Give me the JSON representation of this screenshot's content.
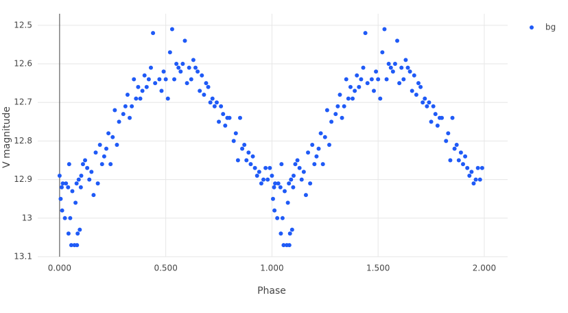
{
  "chart_data": {
    "type": "scatter",
    "x_label": "Phase",
    "y_label": "V magnitude",
    "xlim": [
      -0.103,
      2.11
    ],
    "ylim": [
      12.47,
      13.1
    ],
    "y_reversed": true,
    "grid": true,
    "legend": "top-right",
    "xticks": [
      {
        "value": 0,
        "label": "0.000"
      },
      {
        "value": 0.5,
        "label": "0.500"
      },
      {
        "value": 1,
        "label": "1.000"
      },
      {
        "value": 1.5,
        "label": "1.500"
      },
      {
        "value": 2,
        "label": "2.000"
      }
    ],
    "yticks": [
      12.5,
      12.6,
      12.7,
      12.8,
      12.9,
      13,
      13.1
    ],
    "series": [
      {
        "name": "bg",
        "color": "#1f5af6",
        "x": [
          0,
          0.005,
          0.01,
          0.015,
          0.012,
          0.025,
          0.03,
          0.04,
          0.042,
          0.045,
          0.05,
          0.055,
          0.06,
          0.07,
          0.075,
          0.08,
          0.082,
          0.085,
          0.09,
          0.095,
          0.1,
          0.102,
          0.11,
          0.12,
          0.13,
          0.14,
          0.15,
          0.16,
          0.17,
          0.18,
          0.19,
          0.2,
          0.21,
          0.22,
          0.23,
          0.24,
          0.25,
          0.26,
          0.27,
          0.28,
          0.3,
          0.31,
          0.32,
          0.33,
          0.34,
          0.35,
          0.36,
          0.37,
          0.38,
          0.39,
          0.4,
          0.41,
          0.42,
          0.43,
          0.44,
          0.45,
          0.47,
          0.48,
          0.49,
          0.5,
          0.51,
          0.52,
          0.53,
          0.54,
          0.55,
          0.56,
          0.57,
          0.58,
          0.59,
          0.6,
          0.61,
          0.62,
          0.63,
          0.64,
          0.65,
          0.66,
          0.67,
          0.68,
          0.69,
          0.7,
          0.71,
          0.72,
          0.73,
          0.74,
          0.75,
          0.76,
          0.77,
          0.78,
          0.79,
          0.8,
          0.82,
          0.83,
          0.84,
          0.85,
          0.86,
          0.87,
          0.88,
          0.89,
          0.9,
          0.91,
          0.92,
          0.93,
          0.94,
          0.95,
          0.96,
          0.97,
          0.98,
          0.99,
          1,
          1.005,
          1.01,
          1.015,
          1.012,
          1.025,
          1.03,
          1.04,
          1.042,
          1.045,
          1.05,
          1.055,
          1.06,
          1.07,
          1.075,
          1.08,
          1.082,
          1.085,
          1.09,
          1.095,
          1.1,
          1.102,
          1.11,
          1.12,
          1.13,
          1.14,
          1.15,
          1.16,
          1.17,
          1.18,
          1.19,
          1.2,
          1.21,
          1.22,
          1.23,
          1.24,
          1.25,
          1.26,
          1.27,
          1.28,
          1.3,
          1.31,
          1.32,
          1.33,
          1.34,
          1.35,
          1.36,
          1.37,
          1.38,
          1.39,
          1.4,
          1.41,
          1.42,
          1.43,
          1.44,
          1.45,
          1.47,
          1.48,
          1.49,
          1.5,
          1.51,
          1.52,
          1.53,
          1.54,
          1.55,
          1.56,
          1.57,
          1.58,
          1.59,
          1.6,
          1.61,
          1.62,
          1.63,
          1.64,
          1.65,
          1.66,
          1.67,
          1.68,
          1.69,
          1.7,
          1.71,
          1.72,
          1.73,
          1.74,
          1.75,
          1.76,
          1.77,
          1.78,
          1.79,
          1.8,
          1.82,
          1.83,
          1.84,
          1.85,
          1.86,
          1.87,
          1.88,
          1.89,
          1.9,
          1.91,
          1.92,
          1.93,
          1.94,
          1.95,
          1.96,
          1.97,
          1.98,
          1.99
        ],
        "values": [
          12.89,
          12.95,
          12.92,
          12.91,
          12.98,
          13.0,
          12.91,
          12.92,
          13.04,
          12.86,
          13.0,
          13.07,
          12.93,
          13.07,
          12.96,
          12.91,
          13.07,
          13.04,
          12.9,
          13.03,
          12.92,
          12.89,
          12.86,
          12.85,
          12.87,
          12.9,
          12.88,
          12.94,
          12.83,
          12.91,
          12.81,
          12.86,
          12.84,
          12.82,
          12.78,
          12.86,
          12.79,
          12.72,
          12.81,
          12.75,
          12.73,
          12.71,
          12.68,
          12.74,
          12.71,
          12.64,
          12.69,
          12.66,
          12.69,
          12.67,
          12.63,
          12.66,
          12.64,
          12.61,
          12.52,
          12.65,
          12.64,
          12.67,
          12.62,
          12.64,
          12.69,
          12.57,
          12.51,
          12.64,
          12.6,
          12.61,
          12.62,
          12.6,
          12.54,
          12.65,
          12.61,
          12.64,
          12.59,
          12.61,
          12.62,
          12.67,
          12.63,
          12.68,
          12.65,
          12.66,
          12.7,
          12.69,
          12.71,
          12.7,
          12.75,
          12.71,
          12.73,
          12.76,
          12.74,
          12.74,
          12.8,
          12.78,
          12.85,
          12.74,
          12.82,
          12.81,
          12.85,
          12.83,
          12.86,
          12.84,
          12.87,
          12.89,
          12.88,
          12.91,
          12.9,
          12.87,
          12.9,
          12.87,
          12.89,
          12.95,
          12.92,
          12.91,
          12.98,
          13.0,
          12.91,
          12.92,
          13.04,
          12.86,
          13.0,
          13.07,
          12.93,
          13.07,
          12.96,
          12.91,
          13.07,
          13.04,
          12.9,
          13.03,
          12.92,
          12.89,
          12.86,
          12.85,
          12.87,
          12.9,
          12.88,
          12.94,
          12.83,
          12.91,
          12.81,
          12.86,
          12.84,
          12.82,
          12.78,
          12.86,
          12.79,
          12.72,
          12.81,
          12.75,
          12.73,
          12.71,
          12.68,
          12.74,
          12.71,
          12.64,
          12.69,
          12.66,
          12.69,
          12.67,
          12.63,
          12.66,
          12.64,
          12.61,
          12.52,
          12.65,
          12.64,
          12.67,
          12.62,
          12.64,
          12.69,
          12.57,
          12.51,
          12.64,
          12.6,
          12.61,
          12.62,
          12.6,
          12.54,
          12.65,
          12.61,
          12.64,
          12.59,
          12.61,
          12.62,
          12.67,
          12.63,
          12.68,
          12.65,
          12.66,
          12.7,
          12.69,
          12.71,
          12.7,
          12.75,
          12.71,
          12.73,
          12.76,
          12.74,
          12.74,
          12.8,
          12.78,
          12.85,
          12.74,
          12.82,
          12.81,
          12.85,
          12.83,
          12.86,
          12.84,
          12.87,
          12.89,
          12.88,
          12.91,
          12.9,
          12.87,
          12.9,
          12.87
        ]
      }
    ]
  }
}
